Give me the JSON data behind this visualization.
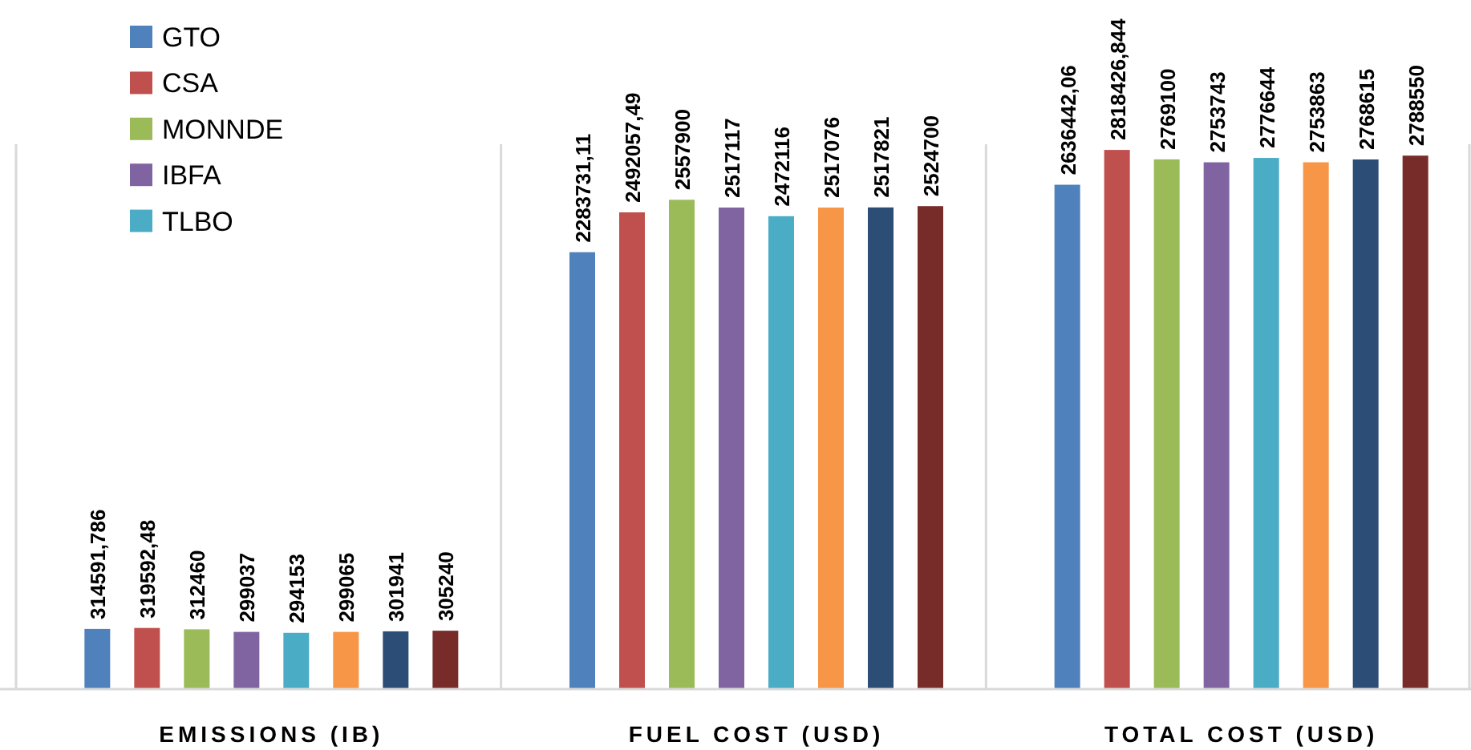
{
  "chart_data": {
    "type": "bar",
    "categories": [
      "EMISSIONS (IB)",
      "FUEL COST (USD)",
      "TOTAL COST (USD)"
    ],
    "legend": "top left",
    "series": [
      {
        "name": "GTO",
        "color": "#4f81bd",
        "values": [
          314591.786,
          2283731.11,
          2636442.06
        ],
        "value_labels": [
          "314591,786",
          "2283731,11",
          "2636442,06"
        ]
      },
      {
        "name": "CSA",
        "color": "#c0504d",
        "values": [
          319592.48,
          2492057.49,
          2818426.844
        ],
        "value_labels": [
          "319592,48",
          "2492057,49",
          "2818426,844"
        ]
      },
      {
        "name": "MONNDE",
        "color": "#9bbb59",
        "values": [
          312460,
          2557900,
          2769100
        ],
        "value_labels": [
          "312460",
          "2557900",
          "2769100"
        ]
      },
      {
        "name": "IBFA",
        "color": "#8064a2",
        "values": [
          299037,
          2517117,
          2753743
        ],
        "value_labels": [
          "299037",
          "2517117",
          "2753743"
        ]
      },
      {
        "name": "TLBO",
        "color": "#4bacc6",
        "values": [
          294153,
          2472116,
          2776644
        ],
        "value_labels": [
          "294153",
          "2472116",
          "2776644"
        ]
      },
      {
        "color": "#f79646",
        "values": [
          299065,
          2517076,
          2753863
        ],
        "value_labels": [
          "299065",
          "2517076",
          "2753863"
        ]
      },
      {
        "color": "#2c4d75",
        "values": [
          301941,
          2517821,
          2768615
        ],
        "value_labels": [
          "301941",
          "2517821",
          "2768615"
        ]
      },
      {
        "color": "#772c2a",
        "values": [
          305240,
          2524700,
          2788550
        ],
        "value_labels": [
          "305240",
          "2524700",
          "2788550"
        ]
      }
    ]
  }
}
